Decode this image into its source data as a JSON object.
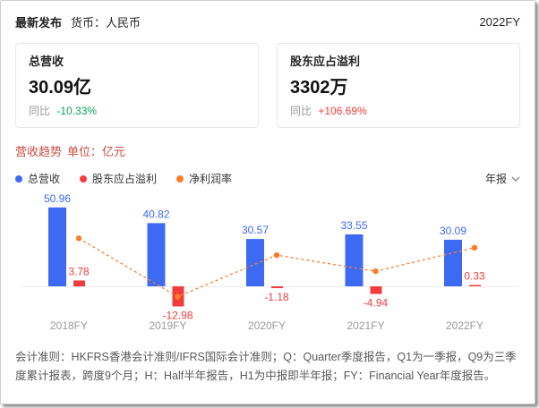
{
  "header": {
    "latest": "最新发布",
    "currency": "货币：人民币",
    "period": "2022FY"
  },
  "cards": [
    {
      "label": "总营收",
      "value": "30.09亿",
      "yoy_label": "同比",
      "yoy": "-10.33%",
      "yoy_color": "#0ca35c"
    },
    {
      "label": "股东应占溢利",
      "value": "3302万",
      "yoy_label": "同比",
      "yoy": "+106.69%",
      "yoy_color": "#f23c3c"
    }
  ],
  "section": {
    "title": "营收趋势",
    "unit": "单位：亿元"
  },
  "legend": [
    {
      "label": "总营收",
      "color": "#3d6af2"
    },
    {
      "label": "股东应占溢利",
      "color": "#f23c3c"
    },
    {
      "label": "净利润率",
      "color": "#fb7d2a"
    }
  ],
  "period_selector": {
    "label": "年报",
    "icon": "chevron-down"
  },
  "chart_data": {
    "type": "bar",
    "categories": [
      "2018FY",
      "2019FY",
      "2020FY",
      "2021FY",
      "2022FY"
    ],
    "series": [
      {
        "name": "总营收",
        "type": "bar",
        "color": "#3d6af2",
        "values": [
          50.96,
          40.82,
          30.57,
          33.55,
          30.09
        ]
      },
      {
        "name": "股东应占溢利",
        "type": "bar",
        "color": "#f23c3c",
        "values": [
          3.78,
          -12.98,
          -1.18,
          -4.94,
          0.33
        ]
      },
      {
        "name": "净利润率",
        "type": "line",
        "color": "#fb7d2a",
        "values_pct": [
          7.4,
          -31.8,
          -3.9,
          -14.7,
          1.1
        ]
      }
    ],
    "unit": "亿元",
    "ylim": [
      -15,
      55
    ],
    "ylim_right": [
      -35,
      10
    ],
    "grid": "baseline-only",
    "legend_position": "top"
  },
  "footer": {
    "text": "会计准则：HKFRS香港会计准则/IFRS国际会计准则；Q：Quarter季度报告，Q1为一季报，Q9为三季度累计报表，跨度9个月；H：Half半年报告，H1为中报即半年报；FY：Financial Year年度报告。"
  },
  "colors": {
    "revenue_bar": "#3d6af2",
    "profit_bar": "#f23c3c",
    "margin_line": "#fb7d2a",
    "yoy_up": "#f23c3c",
    "yoy_down": "#0ca35c",
    "section_title": "#c94b41"
  }
}
